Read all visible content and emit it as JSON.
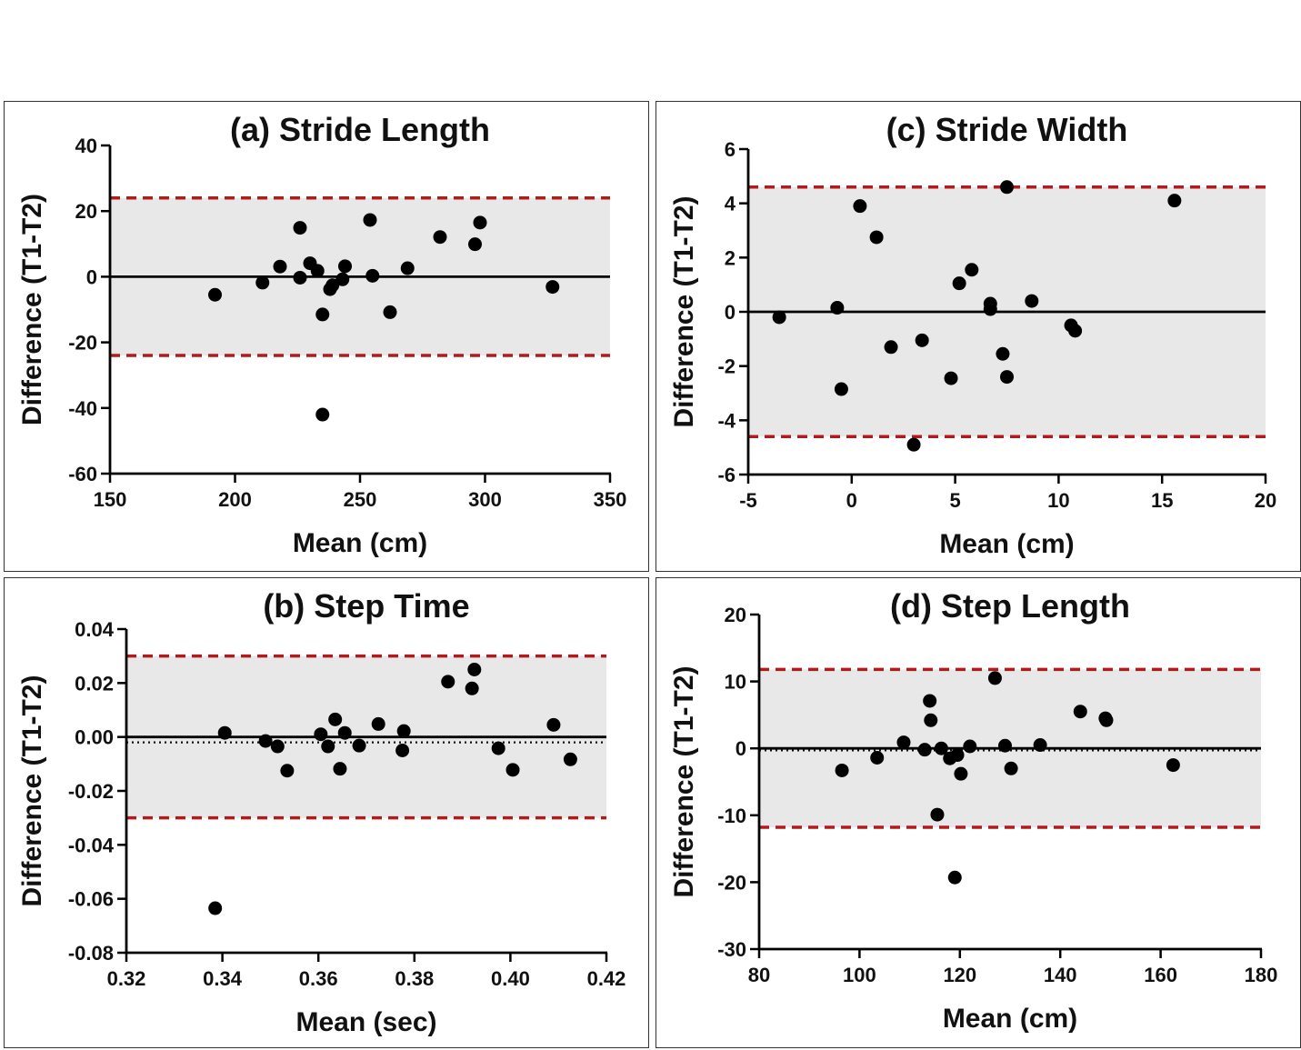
{
  "chart_data": [
    {
      "id": "a",
      "type": "scatter",
      "title": "(a) Stride Length",
      "xlabel": "Mean (cm)",
      "ylabel": "Difference (T1-T2)",
      "xlim": [
        150,
        350
      ],
      "ylim": [
        -60,
        40
      ],
      "xticks": [
        150,
        200,
        250,
        300,
        350
      ],
      "yticks": [
        -60,
        -40,
        -20,
        0,
        20,
        40
      ],
      "xtick_labels": [
        "150",
        "200",
        "250",
        "300",
        "350"
      ],
      "ytick_labels": [
        "-60",
        "-40",
        "-20",
        "0",
        "20",
        "40"
      ],
      "bias": 0,
      "mean_line": null,
      "loa_upper": 24,
      "loa_lower": -24,
      "shade_range": [
        -24,
        24
      ],
      "line_x_range": [
        150,
        350
      ],
      "points": [
        [
          192,
          -5.5
        ],
        [
          211,
          -1.8
        ],
        [
          218,
          3.1
        ],
        [
          226,
          14.9
        ],
        [
          226,
          -0.3
        ],
        [
          230,
          4.1
        ],
        [
          233,
          1.8
        ],
        [
          235,
          -11.5
        ],
        [
          235,
          -42
        ],
        [
          238,
          -3.8
        ],
        [
          239,
          -2.6
        ],
        [
          243,
          -0.8
        ],
        [
          244,
          3.2
        ],
        [
          254,
          17.3
        ],
        [
          255,
          0.3
        ],
        [
          262,
          -10.8
        ],
        [
          269,
          2.6
        ],
        [
          282,
          12.1
        ],
        [
          296,
          9.9
        ],
        [
          298,
          16.5
        ],
        [
          327,
          -3.1
        ]
      ]
    },
    {
      "id": "c",
      "type": "scatter",
      "title": "(c) Stride Width",
      "xlabel": "Mean (cm)",
      "ylabel": "Difference (T1-T2)",
      "xlim": [
        -5,
        20
      ],
      "ylim": [
        -6,
        6
      ],
      "xticks": [
        -5,
        0,
        5,
        10,
        15,
        20
      ],
      "yticks": [
        -6,
        -4,
        -2,
        0,
        2,
        4,
        6
      ],
      "xtick_labels": [
        "-5",
        "0",
        "5",
        "10",
        "15",
        "20"
      ],
      "ytick_labels": [
        "-6",
        "-4",
        "-2",
        "0",
        "2",
        "4",
        "6"
      ],
      "bias": 0,
      "mean_line": null,
      "loa_upper": 4.6,
      "loa_lower": -4.6,
      "shade_range": [
        -4.6,
        4.6
      ],
      "line_x_range": [
        -5,
        20
      ],
      "points": [
        [
          -3.5,
          -0.2
        ],
        [
          -0.7,
          0.15
        ],
        [
          -0.5,
          -2.85
        ],
        [
          0.4,
          3.9
        ],
        [
          1.2,
          2.75
        ],
        [
          1.9,
          -1.3
        ],
        [
          3.0,
          -4.9
        ],
        [
          3.4,
          -1.05
        ],
        [
          4.8,
          -2.45
        ],
        [
          5.2,
          1.05
        ],
        [
          5.8,
          1.55
        ],
        [
          6.7,
          0.3
        ],
        [
          6.7,
          0.1
        ],
        [
          7.3,
          -1.55
        ],
        [
          7.5,
          4.6
        ],
        [
          7.5,
          -2.4
        ],
        [
          8.7,
          0.4
        ],
        [
          10.6,
          -0.5
        ],
        [
          10.8,
          -0.7
        ],
        [
          15.6,
          4.1
        ]
      ]
    },
    {
      "id": "b",
      "type": "scatter",
      "title": "(b) Step Time",
      "xlabel": "Mean (sec)",
      "ylabel": "Difference (T1-T2)",
      "xlim": [
        0.32,
        0.42
      ],
      "ylim": [
        -0.08,
        0.04
      ],
      "xticks": [
        0.32,
        0.34,
        0.36,
        0.38,
        0.4,
        0.42
      ],
      "yticks": [
        -0.08,
        -0.06,
        -0.04,
        -0.02,
        0.0,
        0.02,
        0.04
      ],
      "xtick_labels": [
        "0.32",
        "0.34",
        "0.36",
        "0.38",
        "0.40",
        "0.42"
      ],
      "ytick_labels": [
        "-0.08",
        "-0.06",
        "-0.04",
        "-0.02",
        "0.00",
        "0.02",
        "0.04"
      ],
      "bias": 0,
      "mean_line": -0.002,
      "loa_upper": 0.03,
      "loa_lower": -0.03,
      "shade_range": [
        -0.03,
        0.03
      ],
      "line_x_range": [
        0.32,
        0.42
      ],
      "points": [
        [
          0.3385,
          -0.0635
        ],
        [
          0.3405,
          0.0015
        ],
        [
          0.349,
          -0.0015
        ],
        [
          0.3515,
          -0.0035
        ],
        [
          0.3535,
          -0.0125
        ],
        [
          0.3605,
          0.001
        ],
        [
          0.362,
          -0.0035
        ],
        [
          0.3635,
          0.0065
        ],
        [
          0.3645,
          -0.0118
        ],
        [
          0.3655,
          0.0015
        ],
        [
          0.3685,
          -0.0032
        ],
        [
          0.3725,
          0.0048
        ],
        [
          0.3775,
          -0.005
        ],
        [
          0.3778,
          0.0022
        ],
        [
          0.387,
          0.0205
        ],
        [
          0.392,
          0.018
        ],
        [
          0.3925,
          0.025
        ],
        [
          0.3975,
          -0.0042
        ],
        [
          0.4005,
          -0.0122
        ],
        [
          0.409,
          0.0045
        ],
        [
          0.4125,
          -0.0083
        ]
      ]
    },
    {
      "id": "d",
      "type": "scatter",
      "title": "(d) Step Length",
      "xlabel": "Mean (cm)",
      "ylabel": "Difference (T1-T2)",
      "xlim": [
        80,
        180
      ],
      "ylim": [
        -30,
        20
      ],
      "xticks": [
        80,
        100,
        120,
        140,
        160,
        180
      ],
      "yticks": [
        -30,
        -20,
        -10,
        0,
        10,
        20
      ],
      "xtick_labels": [
        "80",
        "100",
        "120",
        "140",
        "160",
        "180"
      ],
      "ytick_labels": [
        "-30",
        "-20",
        "-10",
        "0",
        "10",
        "20"
      ],
      "bias": 0,
      "mean_line": -0.3,
      "loa_upper": 11.8,
      "loa_lower": -11.8,
      "shade_range": [
        -11.8,
        11.8
      ],
      "line_x_range": [
        80,
        180
      ],
      "points": [
        [
          96.5,
          -3.3
        ],
        [
          103.5,
          -1.4
        ],
        [
          108.8,
          0.9
        ],
        [
          113,
          -0.2
        ],
        [
          114,
          7.1
        ],
        [
          114.2,
          4.2
        ],
        [
          115.5,
          -9.9
        ],
        [
          116.3,
          0.0
        ],
        [
          118,
          -1.5
        ],
        [
          119,
          -19.3
        ],
        [
          119.5,
          -1.0
        ],
        [
          120.2,
          -3.8
        ],
        [
          122,
          0.3
        ],
        [
          127,
          10.5
        ],
        [
          129,
          0.4
        ],
        [
          130.2,
          -3.0
        ],
        [
          136,
          0.5
        ],
        [
          144,
          5.5
        ],
        [
          149,
          4.5
        ],
        [
          149.2,
          4.2
        ],
        [
          162.5,
          -2.5
        ]
      ]
    }
  ],
  "colors": {
    "shade": "#e8e8e8",
    "loa_line": "#b01c1c",
    "axis": "#000000",
    "point": "#000000"
  }
}
